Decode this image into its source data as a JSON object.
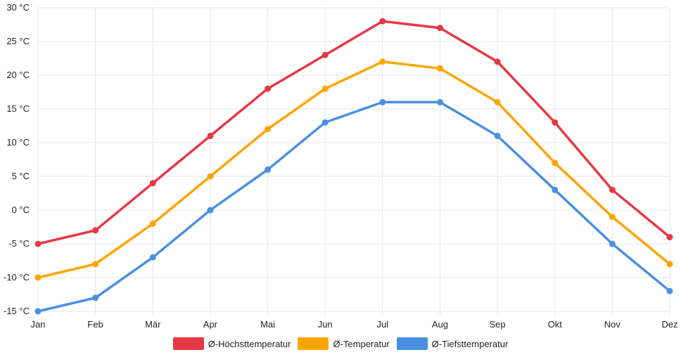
{
  "chart_data": {
    "type": "line",
    "title": "",
    "xlabel": "",
    "ylabel": "",
    "categories": [
      "Jan",
      "Feb",
      "Mär",
      "Apr",
      "Mai",
      "Jun",
      "Jul",
      "Aug",
      "Sep",
      "Okt",
      "Nov",
      "Dez"
    ],
    "ylim": [
      -15,
      30
    ],
    "yticks": [
      "-15 °C",
      "-10 °C",
      "-5 °C",
      "0 °C",
      "5 °C",
      "10 °C",
      "15 °C",
      "20 °C",
      "25 °C",
      "30 °C"
    ],
    "grid": true,
    "legend_position": "bottom",
    "series": [
      {
        "name": "Ø-Höchsttemperatur",
        "color": "#e63946",
        "values": [
          -5,
          -3,
          4,
          11,
          18,
          23,
          28,
          27,
          22,
          13,
          3,
          -4
        ]
      },
      {
        "name": "Ø-Temperatur",
        "color": "#ffa500",
        "values": [
          -10,
          -8,
          -2,
          5,
          12,
          18,
          22,
          21,
          16,
          7,
          -1,
          -8
        ]
      },
      {
        "name": "Ø-Tiefsttemperatur",
        "color": "#4a90e2",
        "values": [
          -15,
          -13,
          -7,
          0,
          6,
          13,
          16,
          16,
          11,
          3,
          -5,
          -12
        ]
      }
    ]
  }
}
